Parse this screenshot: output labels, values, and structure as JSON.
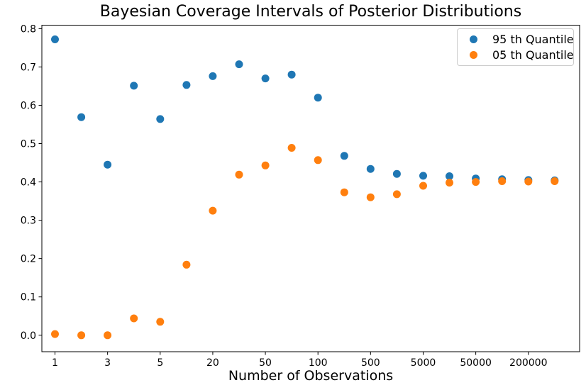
{
  "chart_data": {
    "type": "scatter",
    "title": "Bayesian Coverage Intervals of Posterior Distributions",
    "xlabel": "Number of Observations",
    "ylabel": "",
    "x_scale": "log-like values plotted at evenly spaced positions",
    "x": [
      1,
      2,
      3,
      4,
      5,
      10,
      20,
      30,
      50,
      70,
      100,
      300,
      500,
      1000,
      5000,
      10000,
      50000,
      100000,
      200000,
      500000
    ],
    "x_tick_indices": [
      0,
      2,
      4,
      6,
      8,
      10,
      12,
      14,
      16,
      18
    ],
    "x_tick_labels": [
      "1",
      "3",
      "5",
      "20",
      "50",
      "100",
      "500",
      "5000",
      "50000",
      "200000"
    ],
    "y_ticks": [
      "0.0",
      "0.1",
      "0.2",
      "0.3",
      "0.4",
      "0.5",
      "0.6",
      "0.7",
      "0.8"
    ],
    "ylim": [
      -0.043,
      0.809
    ],
    "grid": false,
    "legend_position": "upper right",
    "series": [
      {
        "name": "95 th Quantile",
        "color": "#1f77b4",
        "values": [
          0.772,
          0.569,
          0.445,
          0.651,
          0.564,
          0.653,
          0.676,
          0.707,
          0.67,
          0.68,
          0.62,
          0.468,
          0.434,
          0.421,
          0.416,
          0.415,
          0.409,
          0.407,
          0.405,
          0.404
        ]
      },
      {
        "name": "05 th Quantile",
        "color": "#ff7f0e",
        "values": [
          0.003,
          0.0,
          0.0,
          0.044,
          0.035,
          0.184,
          0.325,
          0.419,
          0.443,
          0.489,
          0.457,
          0.373,
          0.36,
          0.368,
          0.39,
          0.398,
          0.4,
          0.402,
          0.401,
          0.402
        ]
      }
    ]
  }
}
